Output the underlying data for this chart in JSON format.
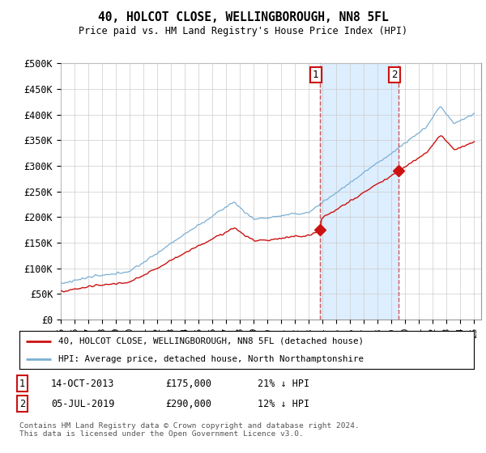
{
  "title": "40, HOLCOT CLOSE, WELLINGBOROUGH, NN8 5FL",
  "subtitle": "Price paid vs. HM Land Registry's House Price Index (HPI)",
  "ylabel_ticks": [
    "£0",
    "£50K",
    "£100K",
    "£150K",
    "£200K",
    "£250K",
    "£300K",
    "£350K",
    "£400K",
    "£450K",
    "£500K"
  ],
  "ytick_values": [
    0,
    50000,
    100000,
    150000,
    200000,
    250000,
    300000,
    350000,
    400000,
    450000,
    500000
  ],
  "ylim": [
    0,
    500000
  ],
  "xlim_start": 1995.0,
  "xlim_end": 2025.5,
  "hpi_color": "#7bafd4",
  "price_color": "#cc1111",
  "vline_color": "#cc4444",
  "shade_color": "#ddeeff",
  "marker1_x": 2013.79,
  "marker1_y": 175000,
  "marker2_x": 2019.5,
  "marker2_y": 290000,
  "marker1_label": "1",
  "marker2_label": "2",
  "legend_line1": "40, HOLCOT CLOSE, WELLINGBOROUGH, NN8 5FL (detached house)",
  "legend_line2": "HPI: Average price, detached house, North Northamptonshire",
  "footer": "Contains HM Land Registry data © Crown copyright and database right 2024.\nThis data is licensed under the Open Government Licence v3.0.",
  "background_color": "#ffffff",
  "grid_color": "#cccccc"
}
